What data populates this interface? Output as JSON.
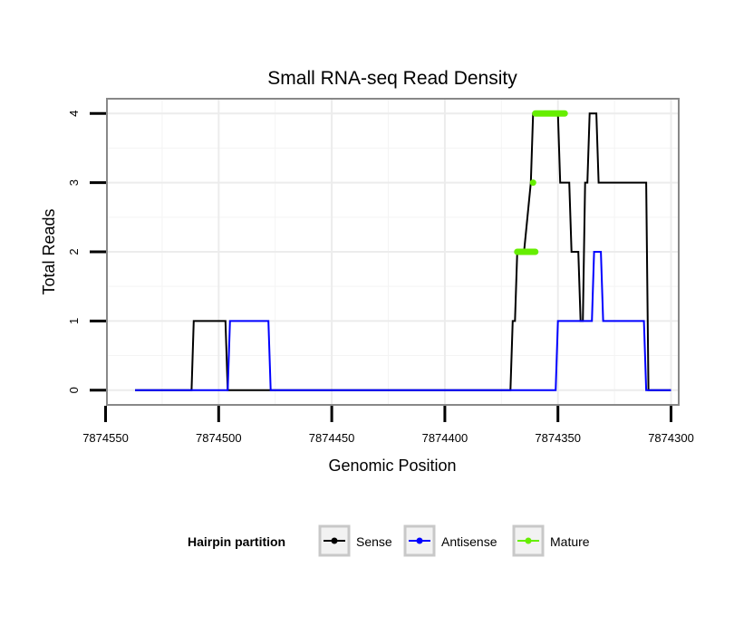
{
  "chart_data": {
    "type": "line",
    "title": "Small RNA-seq Read Density",
    "xlabel": "Genomic Position",
    "ylabel": "Total Reads",
    "xlim": [
      7874549,
      7874297
    ],
    "ylim": [
      -0.2,
      4.2
    ],
    "x_reversed": true,
    "xticks": [
      7874550,
      7874500,
      7874450,
      7874400,
      7874350,
      7874300
    ],
    "xtick_labels": [
      "7874550",
      "7874500",
      "7874450",
      "7874400",
      "7874350",
      "7874300"
    ],
    "yticks": [
      0,
      1,
      2,
      3,
      4
    ],
    "ytick_labels": [
      "0",
      "1",
      "2",
      "3",
      "4"
    ],
    "grid": true,
    "legend": {
      "title": "Hairpin partition",
      "position": "bottom",
      "entries": [
        "Sense",
        "Antisense",
        "Mature"
      ]
    },
    "series": [
      {
        "name": "Sense",
        "color": "#000000",
        "style": "line",
        "points": [
          [
            7874537,
            0
          ],
          [
            7874512,
            0
          ],
          [
            7874511,
            1
          ],
          [
            7874497,
            1
          ],
          [
            7874496,
            0
          ],
          [
            7874371,
            0
          ],
          [
            7874370,
            1
          ],
          [
            7874369,
            1
          ],
          [
            7874368,
            2
          ],
          [
            7874365,
            2
          ],
          [
            7874362,
            3
          ],
          [
            7874361,
            4
          ],
          [
            7874350,
            4
          ],
          [
            7874349,
            3
          ],
          [
            7874345,
            3
          ],
          [
            7874344,
            2
          ],
          [
            7874341,
            2
          ],
          [
            7874340,
            1
          ],
          [
            7874339,
            1
          ],
          [
            7874338,
            3
          ],
          [
            7874337,
            3
          ],
          [
            7874336,
            4
          ],
          [
            7874333,
            4
          ],
          [
            7874332,
            3
          ],
          [
            7874311,
            3
          ],
          [
            7874310,
            0
          ],
          [
            7874300,
            0
          ]
        ]
      },
      {
        "name": "Antisense",
        "color": "#0000ff",
        "style": "line",
        "points": [
          [
            7874537,
            0
          ],
          [
            7874496,
            0
          ],
          [
            7874495,
            1
          ],
          [
            7874478,
            1
          ],
          [
            7874477,
            0
          ],
          [
            7874351,
            0
          ],
          [
            7874350,
            1
          ],
          [
            7874335,
            1
          ],
          [
            7874334,
            2
          ],
          [
            7874331,
            2
          ],
          [
            7874330,
            1
          ],
          [
            7874312,
            1
          ],
          [
            7874311,
            0
          ],
          [
            7874300,
            0
          ]
        ]
      },
      {
        "name": "Mature",
        "color": "#66ee00",
        "style": "segments",
        "points": [
          [
            7874368,
            2
          ],
          [
            7874360,
            2
          ],
          [
            7874361,
            3
          ],
          [
            7874360,
            4
          ],
          [
            7874347,
            4
          ]
        ]
      }
    ]
  }
}
